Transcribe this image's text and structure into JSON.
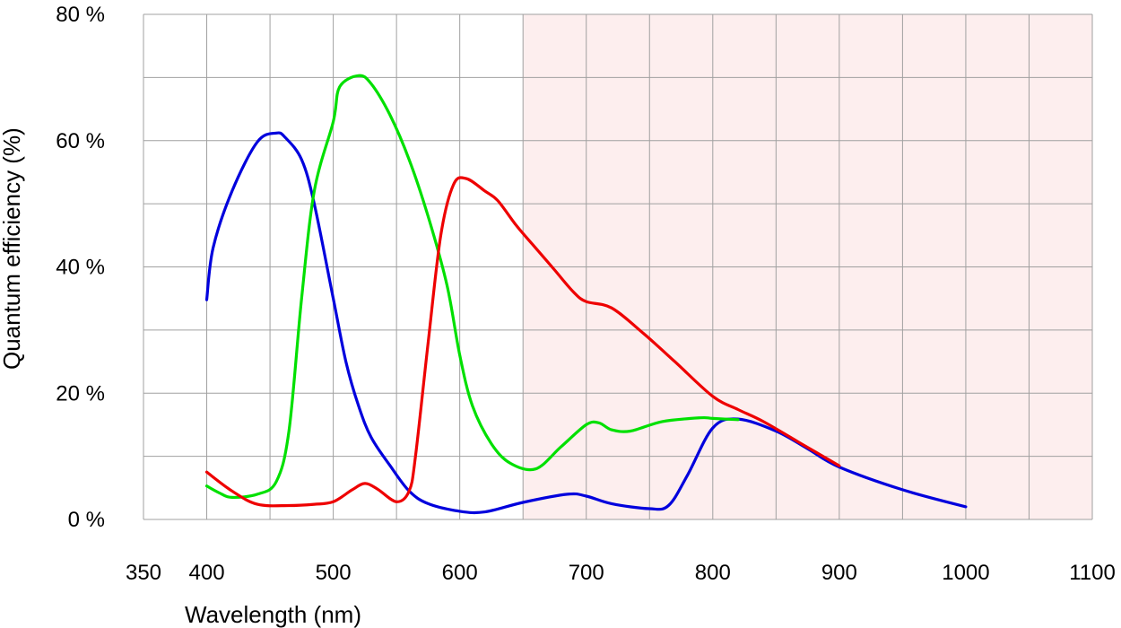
{
  "chart_data": {
    "type": "line",
    "title": "",
    "xlabel": "Wavelength (nm)",
    "ylabel": "Quantum efficiency (%)",
    "xlim": [
      350,
      1100
    ],
    "ylim": [
      0,
      80
    ],
    "grid": true,
    "legend": "none",
    "highlight_band": {
      "from": 650,
      "to": 1100,
      "color": "#fdeeee"
    },
    "x_ticks": [
      {
        "value": 350,
        "label": "350"
      },
      {
        "value": 400,
        "label": "400"
      },
      {
        "value": 500,
        "label": "500"
      },
      {
        "value": 600,
        "label": "600"
      },
      {
        "value": 700,
        "label": "700"
      },
      {
        "value": 800,
        "label": "800"
      },
      {
        "value": 900,
        "label": "900"
      },
      {
        "value": 1000,
        "label": "1000"
      },
      {
        "value": 1100,
        "label": "1100"
      }
    ],
    "y_ticks": [
      {
        "value": 0,
        "label": "0 %"
      },
      {
        "value": 20,
        "label": "20 %"
      },
      {
        "value": 40,
        "label": "40 %"
      },
      {
        "value": 60,
        "label": "60 %"
      },
      {
        "value": 80,
        "label": "80 %"
      }
    ],
    "series": [
      {
        "color": "#0000dd",
        "x": [
          400,
          405,
          420,
          440,
          455,
          462,
          475,
          485,
          500,
          510,
          520,
          530,
          545,
          560,
          575,
          600,
          620,
          650,
          685,
          700,
          720,
          750,
          765,
          780,
          800,
          820,
          850,
          875,
          900,
          950,
          1000
        ],
        "y": [
          34.8,
          43,
          52,
          59.8,
          61.2,
          60.5,
          57,
          50,
          35,
          25,
          18,
          13,
          8.5,
          4.5,
          2.5,
          1.3,
          1.2,
          2.7,
          4.0,
          3.7,
          2.5,
          1.7,
          2.2,
          7,
          14.5,
          15.9,
          14,
          11.2,
          8.3,
          4.7,
          2.0
        ]
      },
      {
        "color": "#00e000",
        "x": [
          400,
          410,
          420,
          440,
          455,
          465,
          475,
          485,
          500,
          505,
          520,
          530,
          545,
          560,
          575,
          590,
          600,
          610,
          625,
          640,
          660,
          680,
          700,
          710,
          720,
          735,
          760,
          790,
          800,
          820
        ],
        "y": [
          5.3,
          4.2,
          3.5,
          4.0,
          6.0,
          14,
          35,
          52,
          63,
          68.5,
          70.3,
          69,
          64,
          57,
          48,
          37,
          26,
          18,
          12,
          8.9,
          8.0,
          11.5,
          15,
          15.3,
          14.2,
          14.0,
          15.5,
          16.1,
          16.0,
          15.8
        ]
      },
      {
        "color": "#ee0000",
        "x": [
          400,
          420,
          440,
          465,
          485,
          500,
          515,
          525,
          535,
          550,
          560,
          565,
          575,
          585,
          595,
          605,
          620,
          630,
          645,
          660,
          675,
          690,
          700,
          720,
          745,
          770,
          800,
          820,
          840,
          870,
          900
        ],
        "y": [
          7.5,
          4.5,
          2.4,
          2.2,
          2.4,
          2.8,
          4.7,
          5.7,
          4.8,
          2.8,
          4.5,
          10,
          28,
          45,
          53,
          54,
          52,
          50.5,
          46.5,
          43,
          39.5,
          36,
          34.5,
          33.5,
          29.5,
          25,
          19.5,
          17.4,
          15.5,
          12,
          8.5
        ]
      }
    ]
  }
}
